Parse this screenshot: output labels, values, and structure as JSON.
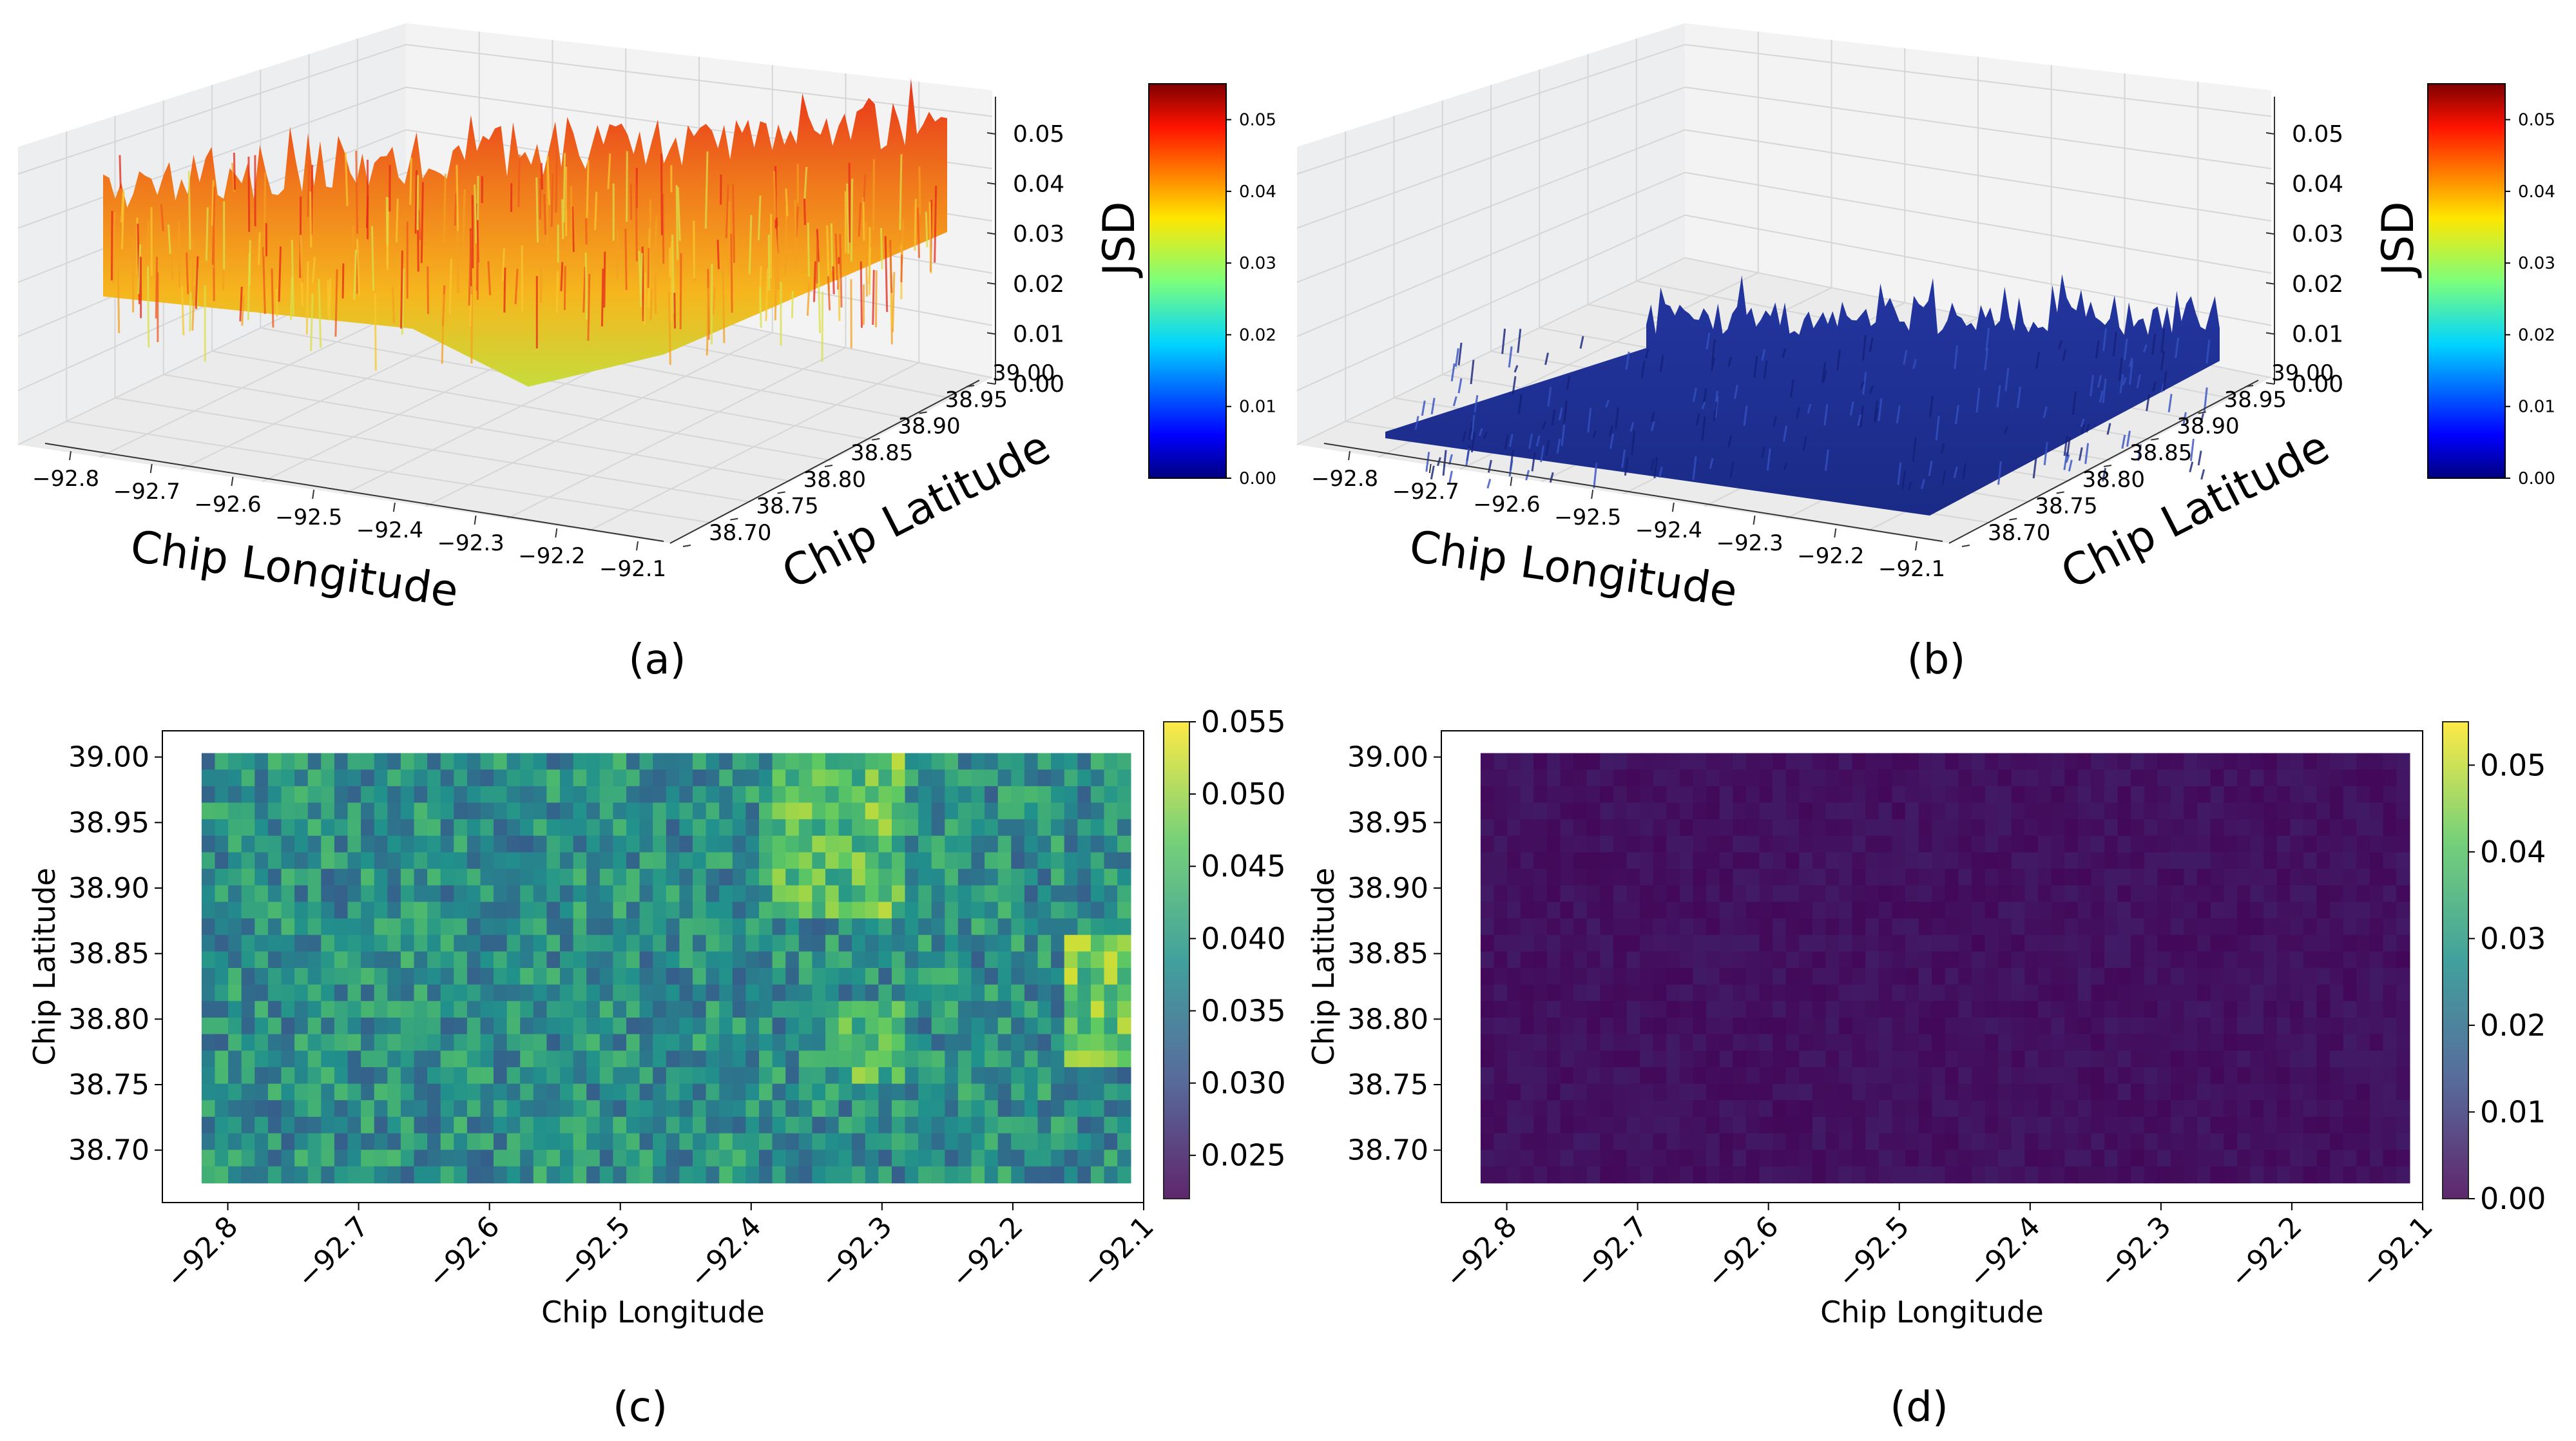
{
  "chart_data": [
    {
      "panel": "a",
      "type": "surface3d",
      "caption": "(a)",
      "xlabel": "Chip Longitude",
      "ylabel": "Chip Latitude",
      "zlabel": "JSD",
      "x_ticks": [
        "−92.8",
        "−92.7",
        "−92.6",
        "−92.5",
        "−92.4",
        "−92.3",
        "−92.2",
        "−92.1"
      ],
      "y_ticks": [
        "38.70",
        "38.75",
        "38.80",
        "38.85",
        "38.90",
        "38.95",
        "39.00"
      ],
      "z_ticks": [
        "0.00",
        "0.01",
        "0.02",
        "0.03",
        "0.04",
        "0.05"
      ],
      "colorbar_ticks": [
        "0.00",
        "0.01",
        "0.02",
        "0.03",
        "0.04",
        "0.05"
      ],
      "colormap": "jet",
      "xlim": [
        -92.82,
        -92.1
      ],
      "ylim": [
        38.67,
        39.0
      ],
      "zlim": [
        0.0,
        0.055
      ],
      "surface_range": [
        0.025,
        0.055
      ]
    },
    {
      "panel": "b",
      "type": "surface3d",
      "caption": "(b)",
      "xlabel": "Chip Longitude",
      "ylabel": "Chip Latitude",
      "zlabel": "JSD",
      "x_ticks": [
        "−92.8",
        "−92.7",
        "−92.6",
        "−92.5",
        "−92.4",
        "−92.3",
        "−92.2",
        "−92.1"
      ],
      "y_ticks": [
        "38.70",
        "38.75",
        "38.80",
        "38.85",
        "38.90",
        "38.95",
        "39.00"
      ],
      "z_ticks": [
        "0.00",
        "0.01",
        "0.02",
        "0.03",
        "0.04",
        "0.05"
      ],
      "colorbar_ticks": [
        "0.00",
        "0.01",
        "0.02",
        "0.03",
        "0.04",
        "0.05"
      ],
      "colormap": "jet",
      "xlim": [
        -92.82,
        -92.1
      ],
      "ylim": [
        38.67,
        39.0
      ],
      "zlim": [
        0.0,
        0.055
      ],
      "surface_range": [
        0.0,
        0.008
      ]
    },
    {
      "panel": "c",
      "type": "heatmap",
      "caption": "(c)",
      "xlabel": "Chip Longitude",
      "ylabel": "Chip Latitude",
      "x_ticks": [
        "−92.8",
        "−92.7",
        "−92.6",
        "−92.5",
        "−92.4",
        "−92.3",
        "−92.2",
        "−92.1"
      ],
      "y_ticks": [
        "38.70",
        "38.75",
        "38.80",
        "38.85",
        "38.90",
        "38.95",
        "39.00"
      ],
      "colorbar_ticks": [
        "0.025",
        "0.030",
        "0.035",
        "0.040",
        "0.045",
        "0.050",
        "0.055"
      ],
      "colormap": "viridis",
      "xlim": [
        -92.85,
        -92.1
      ],
      "ylim": [
        38.66,
        39.02
      ],
      "data_extent": {
        "lon": [
          -92.82,
          -92.11
        ],
        "lat": [
          38.675,
          39.003
        ]
      },
      "value_range": [
        0.022,
        0.055
      ]
    },
    {
      "panel": "d",
      "type": "heatmap",
      "caption": "(d)",
      "xlabel": "Chip Longitude",
      "ylabel": "Chip Latitude",
      "x_ticks": [
        "−92.8",
        "−92.7",
        "−92.6",
        "−92.5",
        "−92.4",
        "−92.3",
        "−92.2",
        "−92.1"
      ],
      "y_ticks": [
        "38.70",
        "38.75",
        "38.80",
        "38.85",
        "38.90",
        "38.95",
        "39.00"
      ],
      "colorbar_ticks": [
        "0.00",
        "0.01",
        "0.02",
        "0.03",
        "0.04",
        "0.05"
      ],
      "colormap": "viridis",
      "xlim": [
        -92.85,
        -92.1
      ],
      "ylim": [
        38.66,
        39.02
      ],
      "data_extent": {
        "lon": [
          -92.82,
          -92.11
        ],
        "lat": [
          38.675,
          39.003
        ]
      },
      "value_range": [
        0.0,
        0.055
      ]
    }
  ]
}
